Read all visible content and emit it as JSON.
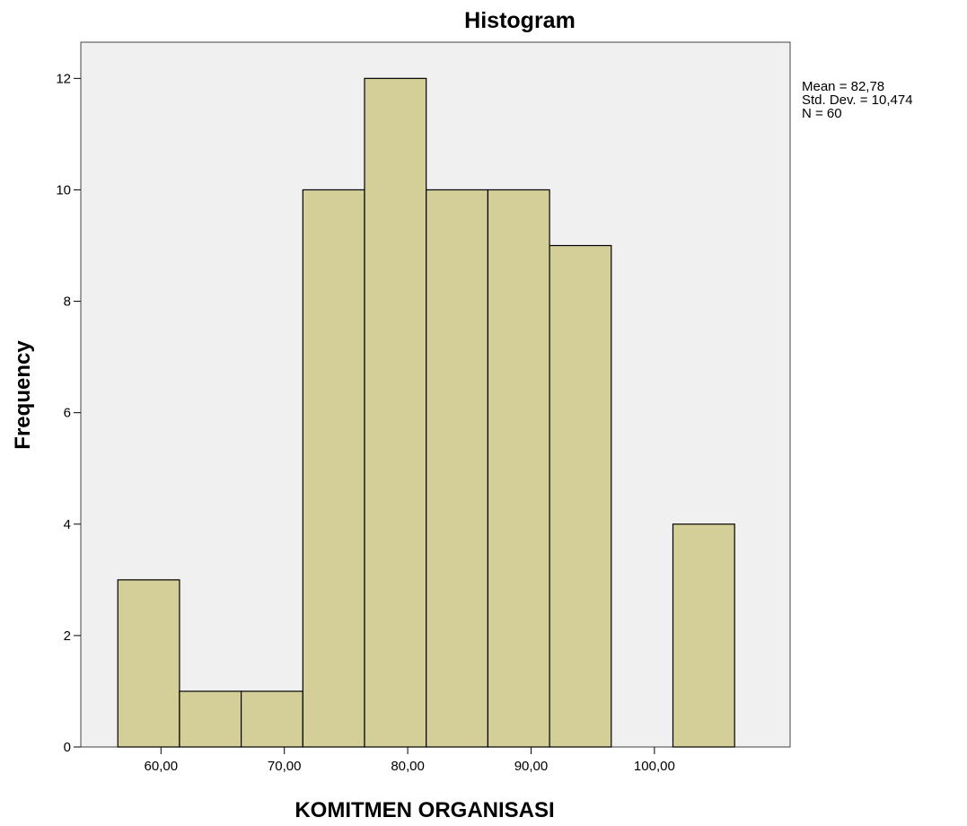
{
  "chart_data": {
    "type": "bar",
    "title": "Histogram",
    "xlabel": "KOMITMEN ORGANISASI",
    "ylabel": "Frequency",
    "x_ticks": [
      "60,00",
      "70,00",
      "80,00",
      "90,00",
      "100,00"
    ],
    "x_tick_values": [
      60,
      70,
      80,
      90,
      100
    ],
    "y_ticks": [
      "0",
      "2",
      "4",
      "6",
      "8",
      "10",
      "12"
    ],
    "y_tick_values": [
      0,
      2,
      4,
      6,
      8,
      10,
      12
    ],
    "xlim": [
      53.5,
      111
    ],
    "ylim": [
      0,
      12.65
    ],
    "bin_width": 5,
    "bins": [
      {
        "start": 56.5,
        "end": 61.5,
        "value": 3
      },
      {
        "start": 61.5,
        "end": 66.5,
        "value": 1
      },
      {
        "start": 66.5,
        "end": 71.5,
        "value": 1
      },
      {
        "start": 71.5,
        "end": 76.5,
        "value": 10
      },
      {
        "start": 76.5,
        "end": 81.5,
        "value": 12
      },
      {
        "start": 81.5,
        "end": 86.5,
        "value": 10
      },
      {
        "start": 86.5,
        "end": 91.5,
        "value": 10
      },
      {
        "start": 91.5,
        "end": 96.5,
        "value": 9
      },
      {
        "start": 96.5,
        "end": 101.5,
        "value": 0
      },
      {
        "start": 101.5,
        "end": 106.5,
        "value": 4
      }
    ],
    "bar_color": "#d4cf98",
    "plot_background": "#f0f0f0",
    "stats": {
      "mean": "Mean = 82,78",
      "std_dev": "Std. Dev. = 10,474",
      "n": "N = 60"
    },
    "grid": false,
    "legend": "none"
  }
}
